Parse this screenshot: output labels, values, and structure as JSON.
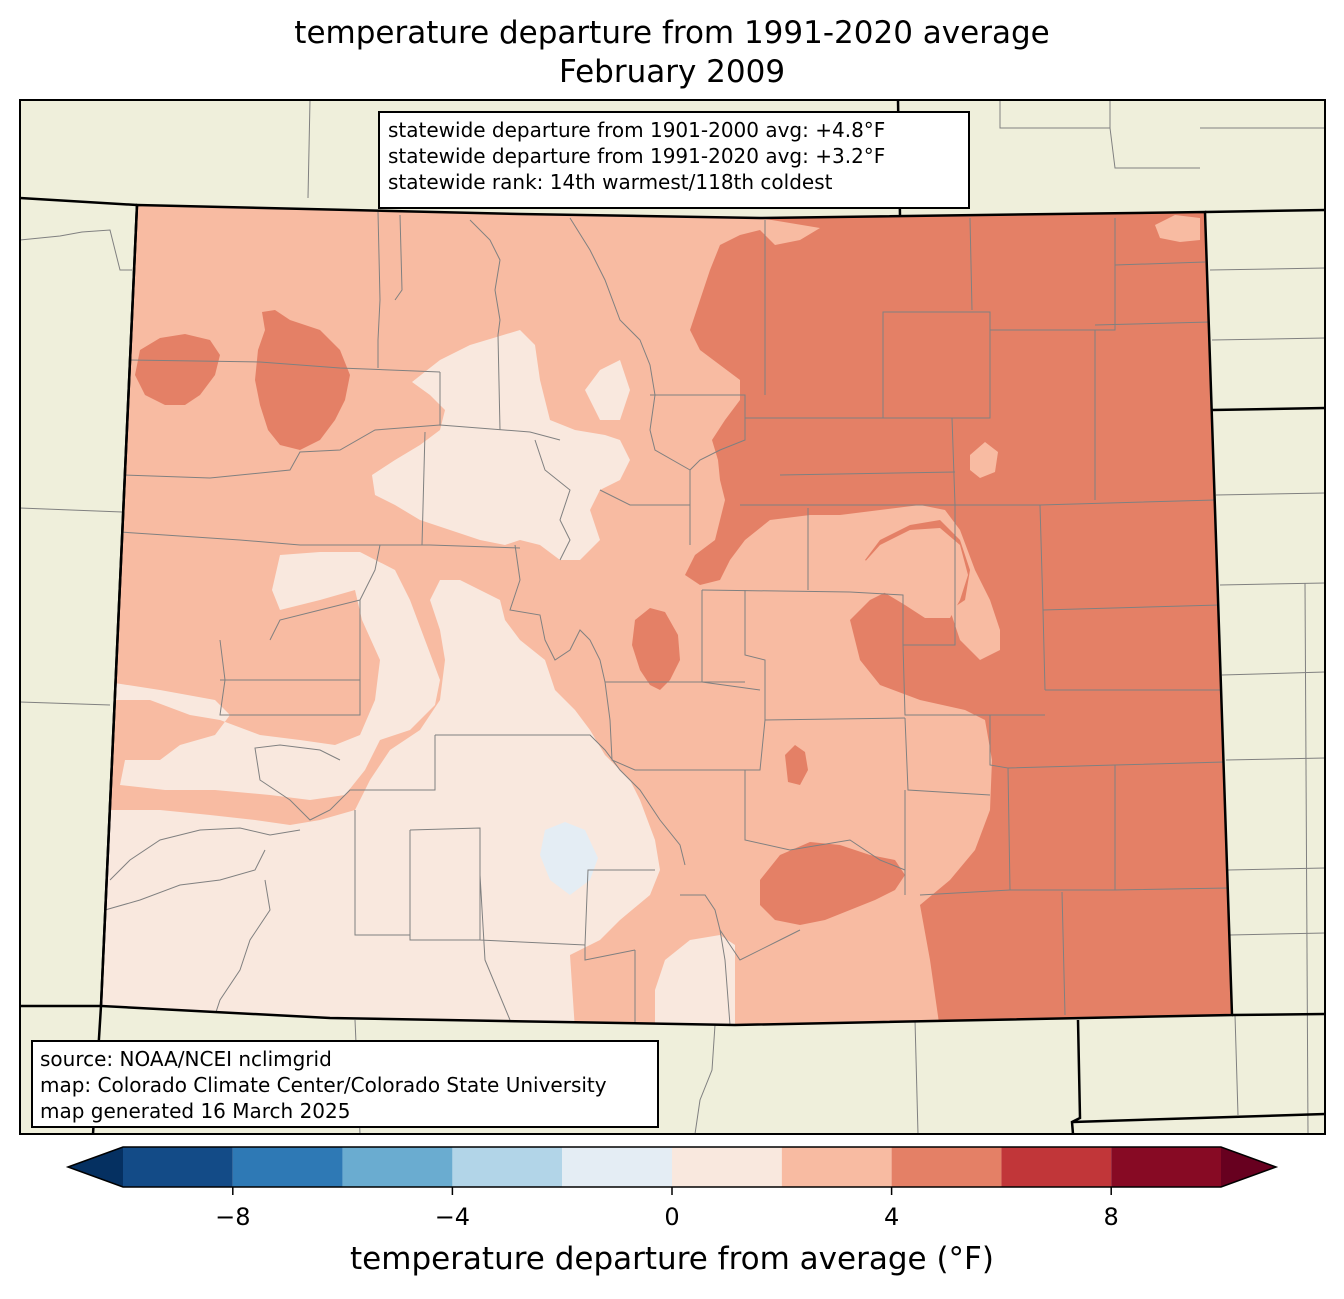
{
  "title_line1": "temperature departure from 1991-2020 average",
  "title_line2": "February 2009",
  "stats": {
    "line1": "statewide departure from 1901-2000 avg: +4.8°F",
    "line2": "statewide departure from 1991-2020 avg: +3.2°F",
    "line3": "statewide rank: 14th warmest/118th coldest"
  },
  "source": {
    "line1": "source: NOAA/NCEI nclimgrid",
    "line2": "map: Colorado Climate Center/Colorado State University",
    "line3": "map generated 16 March 2025"
  },
  "colorbar": {
    "label": "temperature departure from average (°F)",
    "ticks": [
      "−8",
      "−4",
      "0",
      "4",
      "8"
    ],
    "bins": [
      {
        "from": -10,
        "to": -8,
        "color": "#134b87"
      },
      {
        "from": -8,
        "to": -6,
        "color": "#2e79b5"
      },
      {
        "from": -6,
        "to": -4,
        "color": "#6aacd0"
      },
      {
        "from": -4,
        "to": -2,
        "color": "#b2d5e8"
      },
      {
        "from": -2,
        "to": 0,
        "color": "#e4edf4"
      },
      {
        "from": 0,
        "to": 2,
        "color": "#f9e8de"
      },
      {
        "from": 2,
        "to": 4,
        "color": "#f8bba2"
      },
      {
        "from": 4,
        "to": 6,
        "color": "#e48066"
      },
      {
        "from": 6,
        "to": 8,
        "color": "#c13639"
      },
      {
        "from": 8,
        "to": 10,
        "color": "#870a24"
      }
    ],
    "under_color": "#053061",
    "over_color": "#67001f"
  },
  "colors": {
    "land": "#efefdb",
    "state_border": "#000000",
    "county_border": "#808080"
  }
}
